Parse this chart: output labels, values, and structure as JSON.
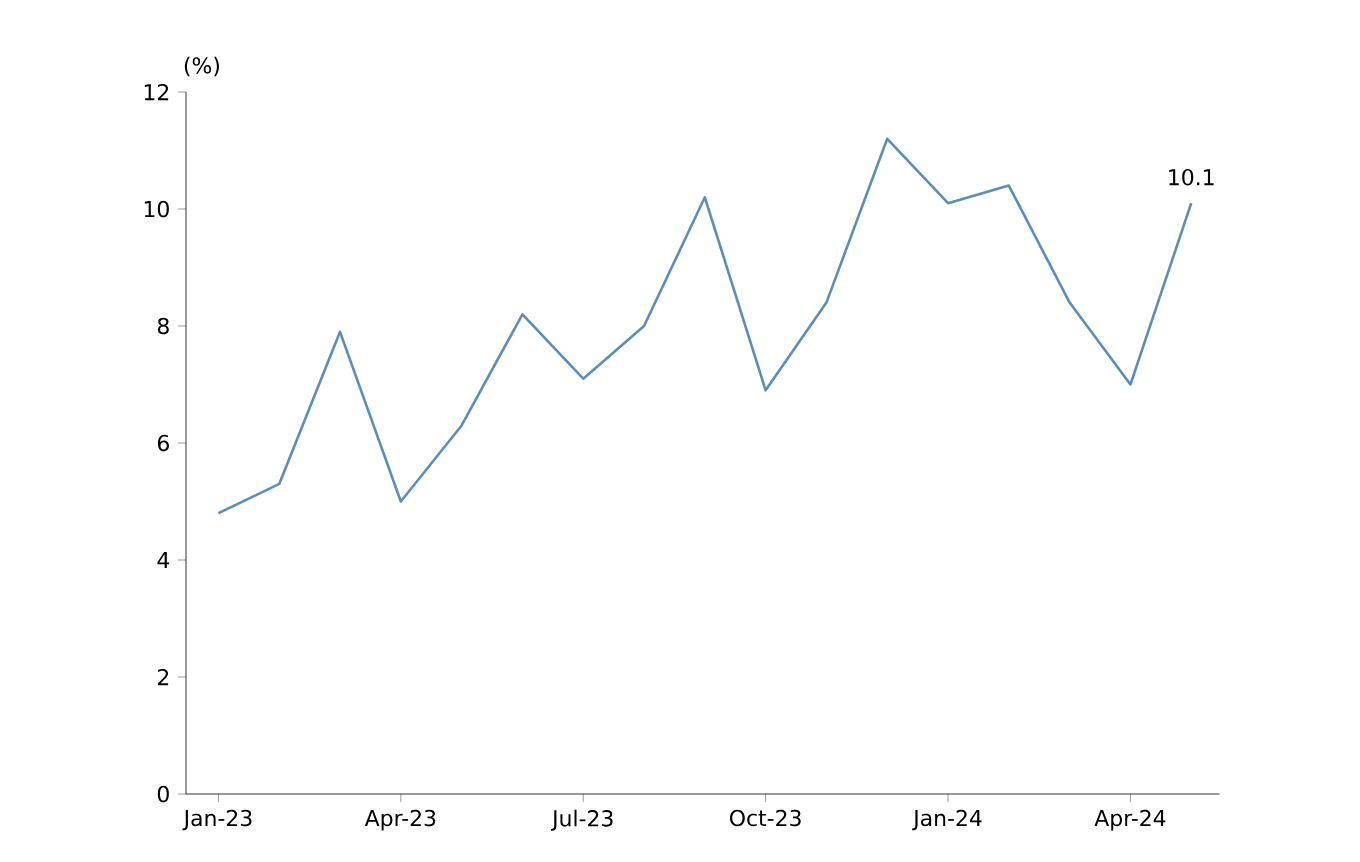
{
  "chart_data": {
    "type": "line",
    "ylabel": "(%)",
    "x": [
      "2023-01",
      "2023-02",
      "2023-03",
      "2023-04",
      "2023-05",
      "2023-06",
      "2023-07",
      "2023-08",
      "2023-09",
      "2023-10",
      "2023-11",
      "2023-12",
      "2024-01",
      "2024-02",
      "2024-03",
      "2024-04",
      "2024-05"
    ],
    "series": [
      {
        "color": "#5b8db8",
        "values": [
          4.8,
          5.3,
          7.9,
          5.0,
          6.3,
          8.2,
          7.1,
          8.0,
          10.2,
          6.9,
          8.4,
          11.2,
          10.1,
          10.4,
          8.4,
          7.0,
          10.1
        ]
      }
    ],
    "xlim": [
      "2022-12-15",
      "2024-05-15"
    ],
    "xticks": [
      {
        "value": "2023-01",
        "label": "Jan-23"
      },
      {
        "value": "2023-04",
        "label": "Apr-23"
      },
      {
        "value": "2023-07",
        "label": "Jul-23"
      },
      {
        "value": "2023-10",
        "label": "Oct-23"
      },
      {
        "value": "2024-01",
        "label": "Jan-24"
      },
      {
        "value": "2024-04",
        "label": "Apr-24"
      }
    ],
    "ylim": [
      0,
      12
    ],
    "yticks": [
      0,
      2,
      4,
      6,
      8,
      10,
      12
    ],
    "annotations": [
      {
        "text": "10.1",
        "x": "2024-05",
        "y": 10.1
      }
    ],
    "grid": false,
    "marker": "none",
    "line_style": "solid"
  }
}
